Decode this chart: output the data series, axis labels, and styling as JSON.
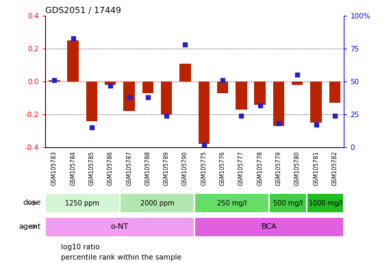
{
  "title": "GDS2051 / 17449",
  "samples": [
    "GSM105783",
    "GSM105784",
    "GSM105785",
    "GSM105786",
    "GSM105787",
    "GSM105788",
    "GSM105789",
    "GSM105790",
    "GSM105775",
    "GSM105776",
    "GSM105777",
    "GSM105778",
    "GSM105779",
    "GSM105780",
    "GSM105781",
    "GSM105782"
  ],
  "log10_ratio": [
    0.01,
    0.25,
    -0.24,
    -0.02,
    -0.18,
    -0.07,
    -0.2,
    0.11,
    -0.38,
    -0.07,
    -0.17,
    -0.14,
    -0.27,
    -0.02,
    -0.25,
    -0.13
  ],
  "percentile": [
    51,
    83,
    15,
    47,
    38,
    38,
    24,
    78,
    2,
    51,
    24,
    32,
    18,
    55,
    17,
    24
  ],
  "dose_groups": [
    {
      "label": "1250 ppm",
      "start": 0,
      "end": 4,
      "color": "#d4f5d4"
    },
    {
      "label": "2000 ppm",
      "start": 4,
      "end": 8,
      "color": "#b0e8b0"
    },
    {
      "label": "250 mg/l",
      "start": 8,
      "end": 12,
      "color": "#66dd66"
    },
    {
      "label": "500 mg/l",
      "start": 12,
      "end": 14,
      "color": "#44cc44"
    },
    {
      "label": "1000 mg/l",
      "start": 14,
      "end": 16,
      "color": "#22bb22"
    }
  ],
  "agent_groups": [
    {
      "label": "o-NT",
      "start": 0,
      "end": 8,
      "color": "#f09cf0"
    },
    {
      "label": "BCA",
      "start": 8,
      "end": 16,
      "color": "#e060e0"
    }
  ],
  "bar_color": "#bb2200",
  "point_color": "#2222cc",
  "zero_line_color": "#cc0000",
  "grid_color": "#000000",
  "ylim": [
    -0.4,
    0.4
  ],
  "y2lim": [
    0,
    100
  ],
  "yticks": [
    -0.4,
    -0.2,
    0.0,
    0.2,
    0.4
  ],
  "y2ticks": [
    0,
    25,
    50,
    75,
    100
  ],
  "xtick_bg": "#d8d8d8",
  "background_color": "#ffffff"
}
